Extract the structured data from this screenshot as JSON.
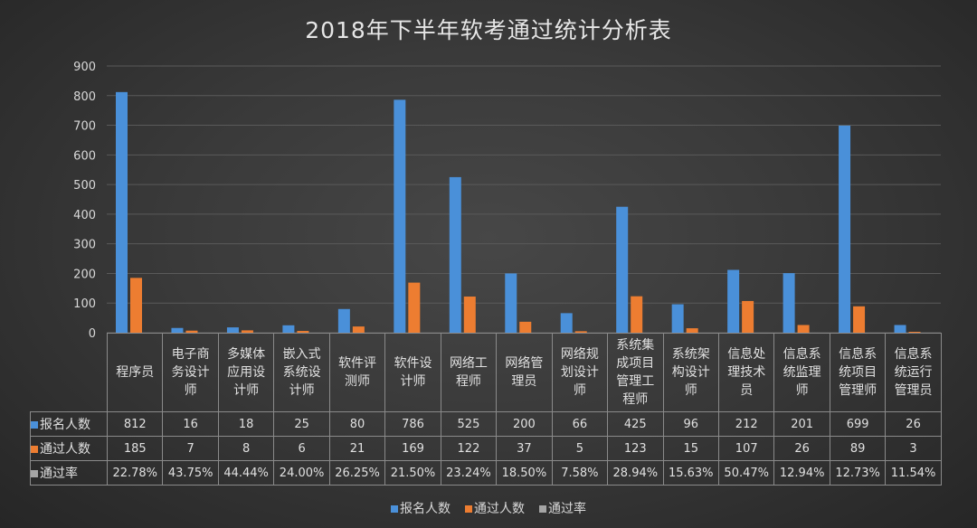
{
  "chart_data": {
    "type": "bar",
    "title": "2018年下半年软考通过统计分析表",
    "categories": [
      "程序员",
      "电子商务设计师",
      "多媒体应用设计师",
      "嵌入式系统设计师",
      "软件评测师",
      "软件设计师",
      "网络工程师",
      "网络管理员",
      "网络规划设计师",
      "系统集成项目管理工程师",
      "系统架构设计师",
      "信息处理技术员",
      "信息系统监理师",
      "信息系统项目管理师",
      "信息系统运行管理员"
    ],
    "series": [
      {
        "name": "报名人数",
        "color": "#4a90d9",
        "values": [
          812,
          16,
          18,
          25,
          80,
          786,
          525,
          200,
          66,
          425,
          96,
          212,
          201,
          699,
          26
        ]
      },
      {
        "name": "通过人数",
        "color": "#ed7d31",
        "values": [
          185,
          7,
          8,
          6,
          21,
          169,
          122,
          37,
          5,
          123,
          15,
          107,
          26,
          89,
          3
        ]
      },
      {
        "name": "通过率",
        "color": "#a5a5a5",
        "values": [
          "22.78%",
          "43.75%",
          "44.44%",
          "24.00%",
          "26.25%",
          "21.50%",
          "23.24%",
          "18.50%",
          "7.58%",
          "28.94%",
          "15.63%",
          "50.47%",
          "12.94%",
          "12.73%",
          "11.54%"
        ]
      }
    ],
    "ylim": [
      0,
      900
    ],
    "yticks": [
      0,
      100,
      200,
      300,
      400,
      500,
      600,
      700,
      800,
      900
    ],
    "grid": true,
    "legend": "bottom",
    "data_table": true
  }
}
